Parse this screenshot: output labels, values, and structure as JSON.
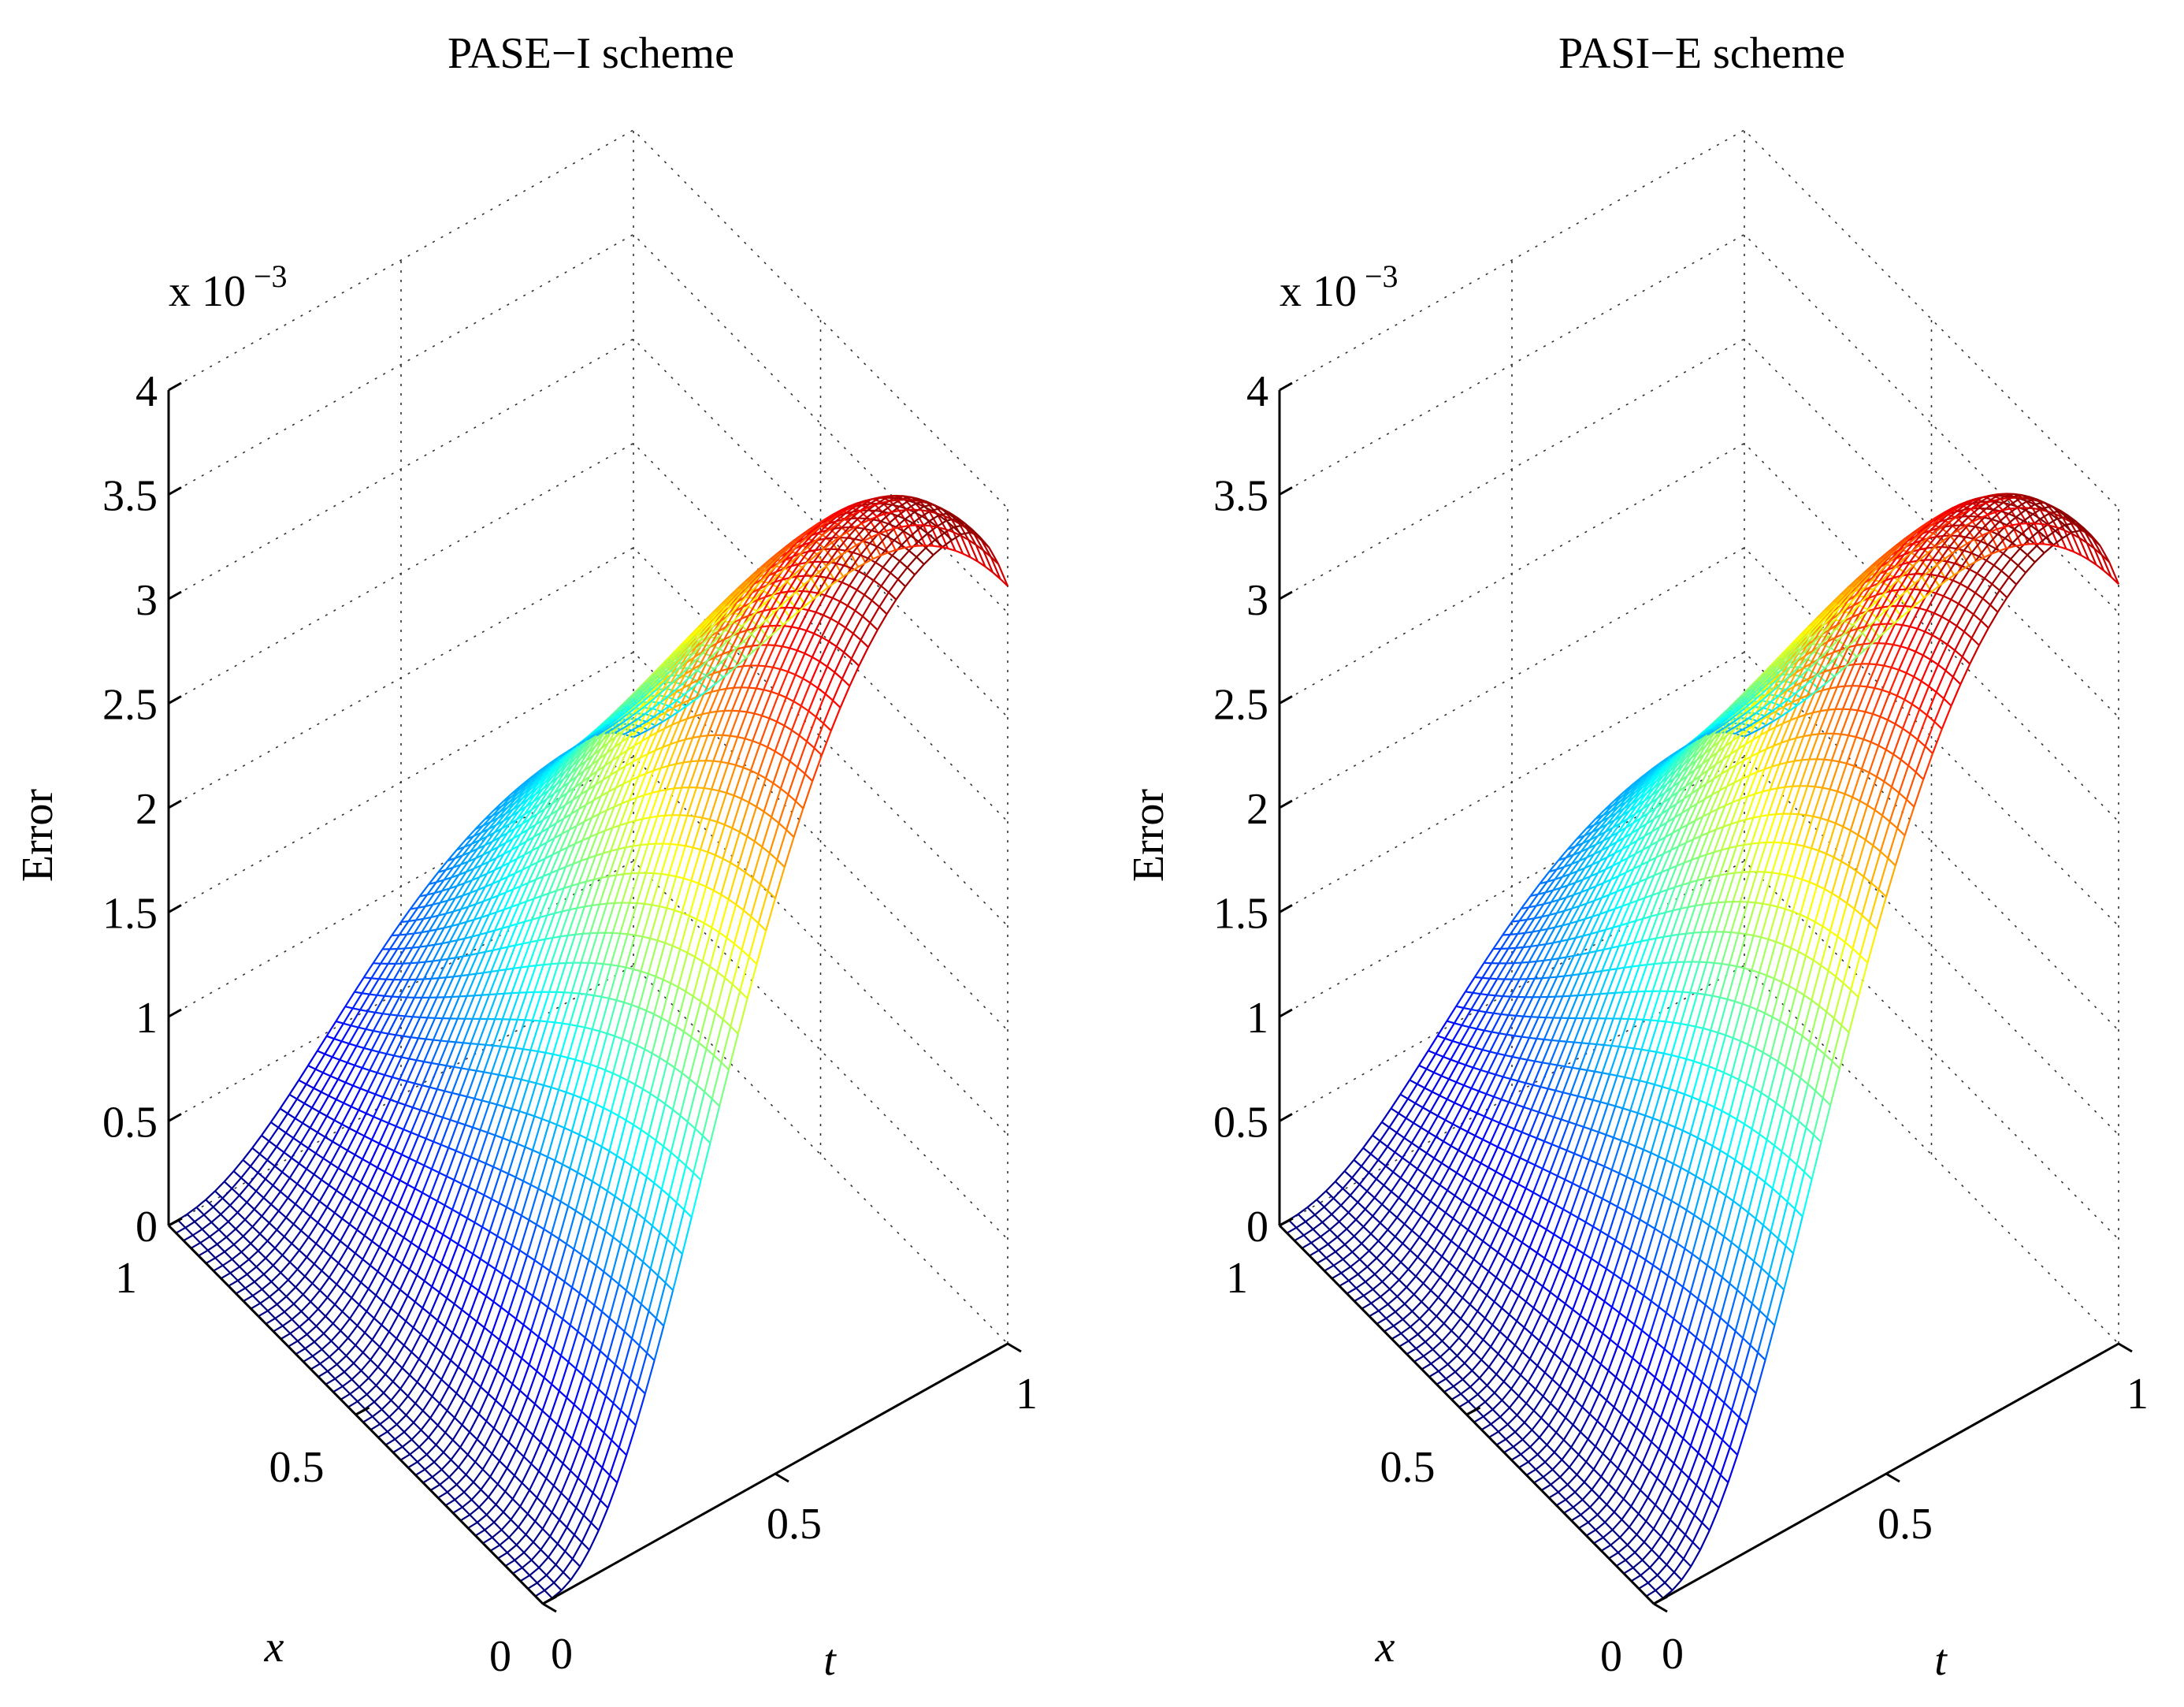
{
  "chart_data": [
    {
      "type": "surface",
      "title": "PASE−I scheme",
      "xlabel": "x",
      "ylabel": "t",
      "zlabel": "Error",
      "z_multiplier": "x 10",
      "z_exponent": "−3",
      "xlim": [
        0,
        1
      ],
      "ylim": [
        0,
        1
      ],
      "zlim": [
        0,
        0.004
      ],
      "x_ticks": [
        "0",
        "0.5",
        "1"
      ],
      "y_ticks": [
        "0",
        "0.5",
        "1"
      ],
      "z_ticks": [
        "0",
        "0.5",
        "1",
        "1.5",
        "2",
        "2.5",
        "3",
        "3.5",
        "4"
      ],
      "peak": {
        "x": 0.0,
        "t": 0.9,
        "error": 0.004
      },
      "grid": true,
      "colormap": "jet"
    },
    {
      "type": "surface",
      "title": "PASI−E scheme",
      "xlabel": "x",
      "ylabel": "t",
      "zlabel": "Error",
      "z_multiplier": "x 10",
      "z_exponent": "−3",
      "xlim": [
        0,
        1
      ],
      "ylim": [
        0,
        1
      ],
      "zlim": [
        0,
        0.004
      ],
      "x_ticks": [
        "0",
        "0.5",
        "1"
      ],
      "y_ticks": [
        "0",
        "0.5",
        "1"
      ],
      "z_ticks": [
        "0",
        "0.5",
        "1",
        "1.5",
        "2",
        "2.5",
        "3",
        "3.5",
        "4"
      ],
      "peak": {
        "x": 0.0,
        "t": 0.9,
        "error": 0.00401
      },
      "grid": true,
      "colormap": "jet"
    }
  ]
}
